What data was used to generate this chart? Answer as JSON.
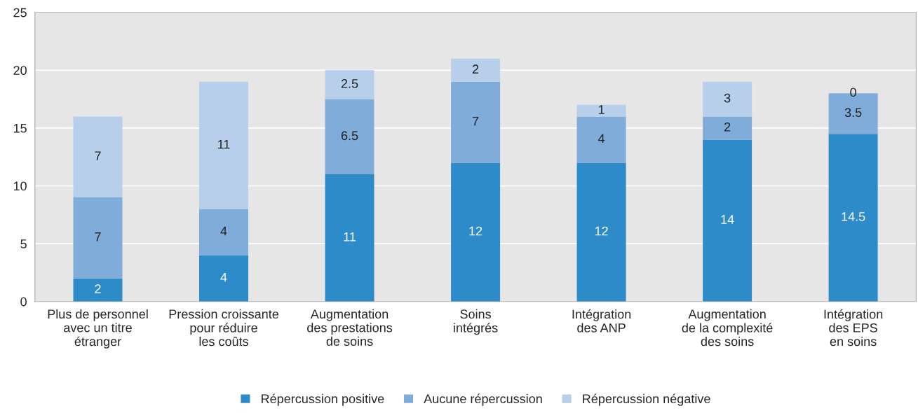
{
  "chart_data": {
    "type": "bar",
    "stacked": true,
    "categories": [
      "Plus de personnel\navec un titre\nétranger",
      "Pression croissante\npour réduire\nles coûts",
      "Augmentation\ndes prestations\nde soins",
      "Soins\nintégrés",
      "Intégration\ndes ANP",
      "Augmentation\nde la complexité\ndes soins",
      "Intégration\ndes EPS\nen soins"
    ],
    "series": [
      {
        "name": "Répercussion positive",
        "color": "#2e8bc9",
        "values": [
          2,
          4,
          11,
          12,
          12,
          14,
          14.5
        ]
      },
      {
        "name": "Aucune répercussion",
        "color": "#80acd9",
        "values": [
          7,
          4,
          6.5,
          7,
          4,
          2,
          3.5
        ]
      },
      {
        "name": "Répercussion négative",
        "color": "#b8cfeb",
        "values": [
          7,
          11,
          2.5,
          2,
          1,
          3,
          0
        ]
      }
    ],
    "ylim": [
      0,
      25
    ],
    "yticks": [
      0,
      5,
      10,
      15,
      20,
      25
    ],
    "grid": "y",
    "legend": "bottom",
    "data_labels": true
  }
}
